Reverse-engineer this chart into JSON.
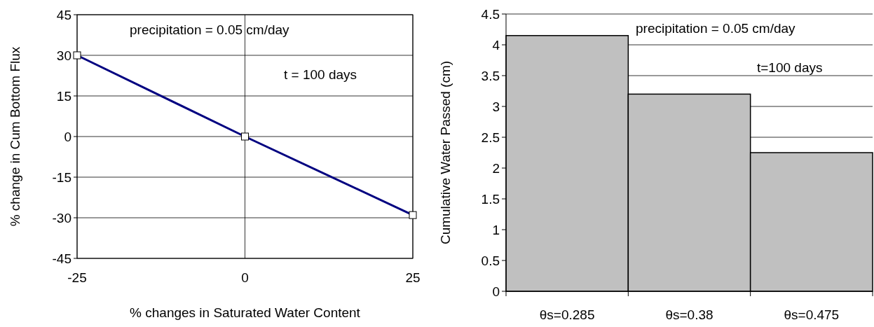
{
  "chart_data": [
    {
      "type": "line",
      "xlabel": "% changes in Saturated Water Content",
      "ylabel": "% change in Cum Bottom Flux",
      "annotations": [
        "precipitation = 0.05 cm/day",
        "t = 100 days"
      ],
      "x": [
        -25,
        0,
        25
      ],
      "series": [
        {
          "color": "#000080",
          "values": [
            30,
            0,
            -29
          ]
        }
      ],
      "xlim": [
        -25,
        25
      ],
      "xticks": [
        -25,
        0,
        25
      ],
      "ylim": [
        -45,
        45
      ],
      "yticks": [
        -45,
        -30,
        -15,
        0,
        15,
        30,
        45
      ],
      "grid": true,
      "marker": "square",
      "line_style": "solid"
    },
    {
      "type": "bar",
      "ylabel": "Cumulative Water Passed (cm)",
      "annotations": [
        "precipitation = 0.05 cm/day",
        "t=100 days"
      ],
      "categories": [
        "θs=0.285",
        "θs=0.38",
        "θs=0.475"
      ],
      "values": [
        4.15,
        3.2,
        2.25
      ],
      "color": "#c0c0c0",
      "ylim": [
        0,
        4.5
      ],
      "yticks": [
        0,
        0.5,
        1,
        1.5,
        2,
        2.5,
        3,
        3.5,
        4,
        4.5
      ],
      "grid": "y"
    }
  ]
}
